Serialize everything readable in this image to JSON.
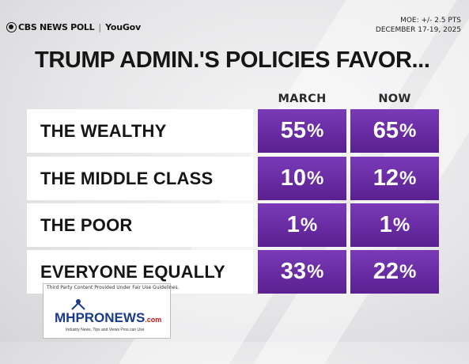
{
  "header": {
    "brand": "CBS NEWS POLL",
    "partner": "YouGov",
    "moe": "MOE: +/- 2.5 PTS",
    "dates": "DECEMBER 17-19, 2025"
  },
  "title": "TRUMP ADMIN.'S POLICIES FAVOR...",
  "colors": {
    "bar": "#7a3ab8",
    "bar_dark": "#5a2090",
    "label_bg": "#ffffff"
  },
  "chart_data": {
    "type": "table",
    "title": "TRUMP ADMIN.'S POLICIES FAVOR...",
    "columns": [
      "MARCH",
      "NOW"
    ],
    "categories": [
      "THE WEALTHY",
      "THE MIDDLE CLASS",
      "THE POOR",
      "EVERYONE EQUALLY"
    ],
    "series": [
      {
        "name": "MARCH",
        "values": [
          55,
          10,
          1,
          33
        ]
      },
      {
        "name": "NOW",
        "values": [
          65,
          12,
          1,
          22
        ]
      }
    ],
    "unit": "%"
  },
  "watermark": {
    "caption": "Third Party Content Provided Under Fair Use Guidelines.",
    "logo_text": "MHPRONEWS",
    "logo_suffix": ".com",
    "tagline": "Industry News, Tips and Views Pros can Use"
  }
}
